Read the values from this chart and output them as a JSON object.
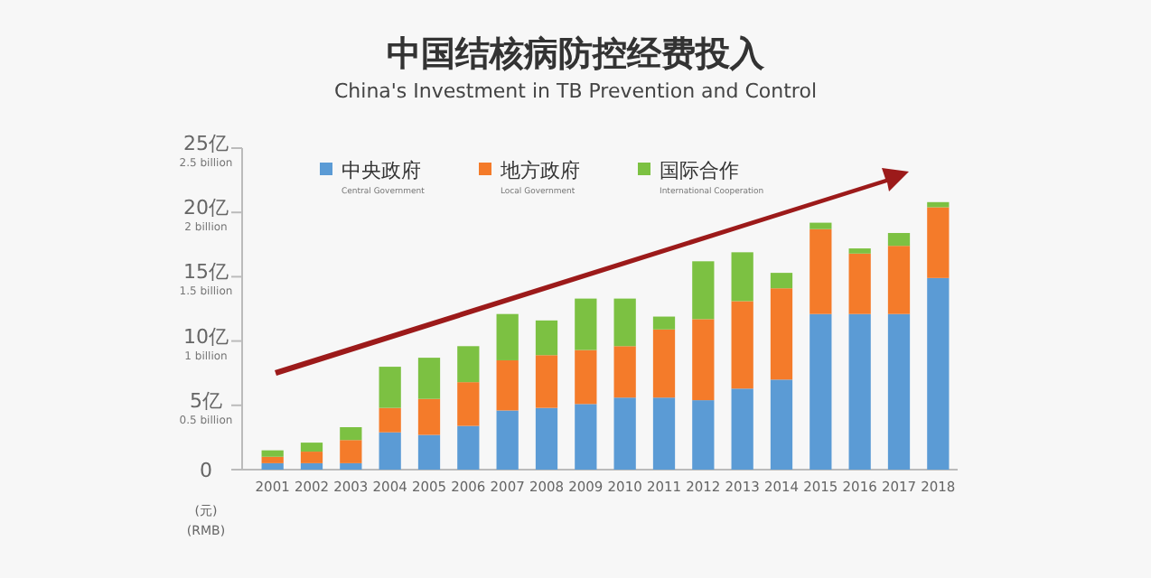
{
  "chart_data": {
    "type": "bar",
    "stacked": true,
    "title": "中国结核病防控经费投入",
    "subtitle": "China's Investment in TB Prevention and Control",
    "annotations": [
      "(元) (RMB)"
    ],
    "categories": [
      "2001",
      "2002",
      "2003",
      "2004",
      "2005",
      "2006",
      "2007",
      "2008",
      "2009",
      "2010",
      "2011",
      "2012",
      "2013",
      "2014",
      "2015",
      "2016",
      "2017",
      "2018"
    ],
    "series": [
      {
        "name": "中央政府 Central Government",
        "color": "#5b9bd5",
        "values": [
          0.5,
          0.5,
          0.5,
          2.9,
          2.7,
          3.4,
          4.6,
          4.8,
          5.1,
          5.6,
          5.6,
          5.4,
          6.3,
          7.0,
          12.1,
          12.1,
          12.1,
          14.9
        ]
      },
      {
        "name": "地方政府 Local Government",
        "color": "#f47b2a",
        "values": [
          0.5,
          0.9,
          1.8,
          1.9,
          2.8,
          3.4,
          3.9,
          4.1,
          4.2,
          4.0,
          5.3,
          6.3,
          6.8,
          7.1,
          6.6,
          4.7,
          5.3,
          5.5
        ]
      },
      {
        "name": "国际合作 International Cooperation",
        "color": "#7cc142",
        "values": [
          0.5,
          0.7,
          1.0,
          3.2,
          3.2,
          2.8,
          3.6,
          2.7,
          4.0,
          3.7,
          1.0,
          4.5,
          3.8,
          1.2,
          0.5,
          0.4,
          1.0,
          0.4
        ]
      }
    ],
    "ylim": [
      0,
      25
    ],
    "yticks": [
      0,
      {
        "value": 5,
        "label": "5亿"
      },
      {
        "value": 10,
        "label": "10亿"
      },
      {
        "value": 15,
        "label": "15亿"
      },
      {
        "value": 20,
        "label": "20亿"
      },
      {
        "value": 25,
        "label": "25亿"
      }
    ],
    "y2lim": [
      0,
      2.5
    ],
    "y2ticks": [
      {
        "value": 0.5,
        "label": "0.5 billion"
      },
      {
        "value": 1,
        "label": "1 billion"
      },
      {
        "value": 1.5,
        "label": "1.5 billion"
      },
      {
        "value": 2,
        "label": "2 billion"
      },
      {
        "value": 2.5,
        "label": "2.5 billion"
      }
    ],
    "legend": "top left",
    "grid": false
  }
}
